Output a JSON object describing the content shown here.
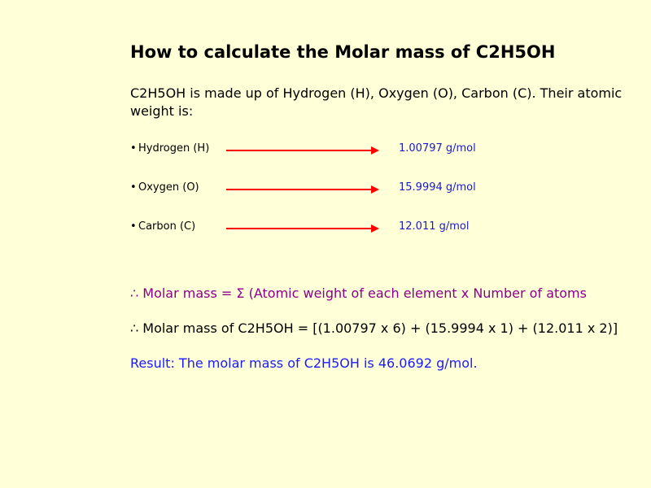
{
  "title": "How to calculate the Molar mass of C2H5OH",
  "intro": "C2H5OH is made up of Hydrogen (H), Oxygen (O), Carbon (C). Their atomic weight is:",
  "elements": [
    {
      "name": "Hydrogen (H)",
      "weight": "1.00797 g/mol"
    },
    {
      "name": "Oxygen (O)",
      "weight": "15.9994 g/mol"
    },
    {
      "name": "Carbon (C)",
      "weight": "12.011 g/mol"
    }
  ],
  "formula_line": "∴ Molar mass = Σ (Atomic weight of each element x Number of atoms",
  "calc_line": "∴ Molar mass of C2H5OH = [(1.00797 x 6) + (15.9994 x 1) + (12.011 x 2)]",
  "result_line": "Result: The molar mass of C2H5OH is 46.0692 g/mol.",
  "style": {
    "background_color": "#ffffd8",
    "title_fontsize": 21,
    "body_fontsize": 16,
    "small_fontsize": 13,
    "arrow_color": "#ff0000",
    "weight_color": "#1a1acc",
    "formula_color": "#8b008b",
    "result_color": "#1a1aff",
    "text_color": "#000000",
    "arrow_stroke_width": 2
  }
}
